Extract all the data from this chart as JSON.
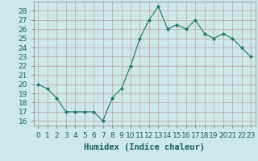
{
  "x": [
    0,
    1,
    2,
    3,
    4,
    5,
    6,
    7,
    8,
    9,
    10,
    11,
    12,
    13,
    14,
    15,
    16,
    17,
    18,
    19,
    20,
    21,
    22,
    23
  ],
  "y": [
    20,
    19.5,
    18.5,
    17,
    17,
    17,
    17,
    16,
    18.5,
    19.5,
    22,
    25,
    27,
    28.5,
    26,
    26.5,
    26,
    27,
    25.5,
    25,
    25.5,
    25,
    24,
    23
  ],
  "line_color": "#1a7a5e",
  "marker_color": "#1a7a5e",
  "bg_color": "#cce8e8",
  "grid_color_major": "#d4a0a0",
  "grid_color_minor": "#d4c0c0",
  "xlabel": "Humidex (Indice chaleur)",
  "ylim": [
    15.5,
    29
  ],
  "xlim": [
    -0.5,
    23.5
  ],
  "yticks": [
    16,
    17,
    18,
    19,
    20,
    21,
    22,
    23,
    24,
    25,
    26,
    27,
    28
  ],
  "xtick_labels": [
    "0",
    "1",
    "2",
    "3",
    "4",
    "5",
    "6",
    "7",
    "8",
    "9",
    "10",
    "11",
    "12",
    "13",
    "14",
    "15",
    "16",
    "17",
    "18",
    "19",
    "20",
    "21",
    "22",
    "23"
  ],
  "xlabel_fontsize": 7.5,
  "tick_fontsize": 6.5
}
